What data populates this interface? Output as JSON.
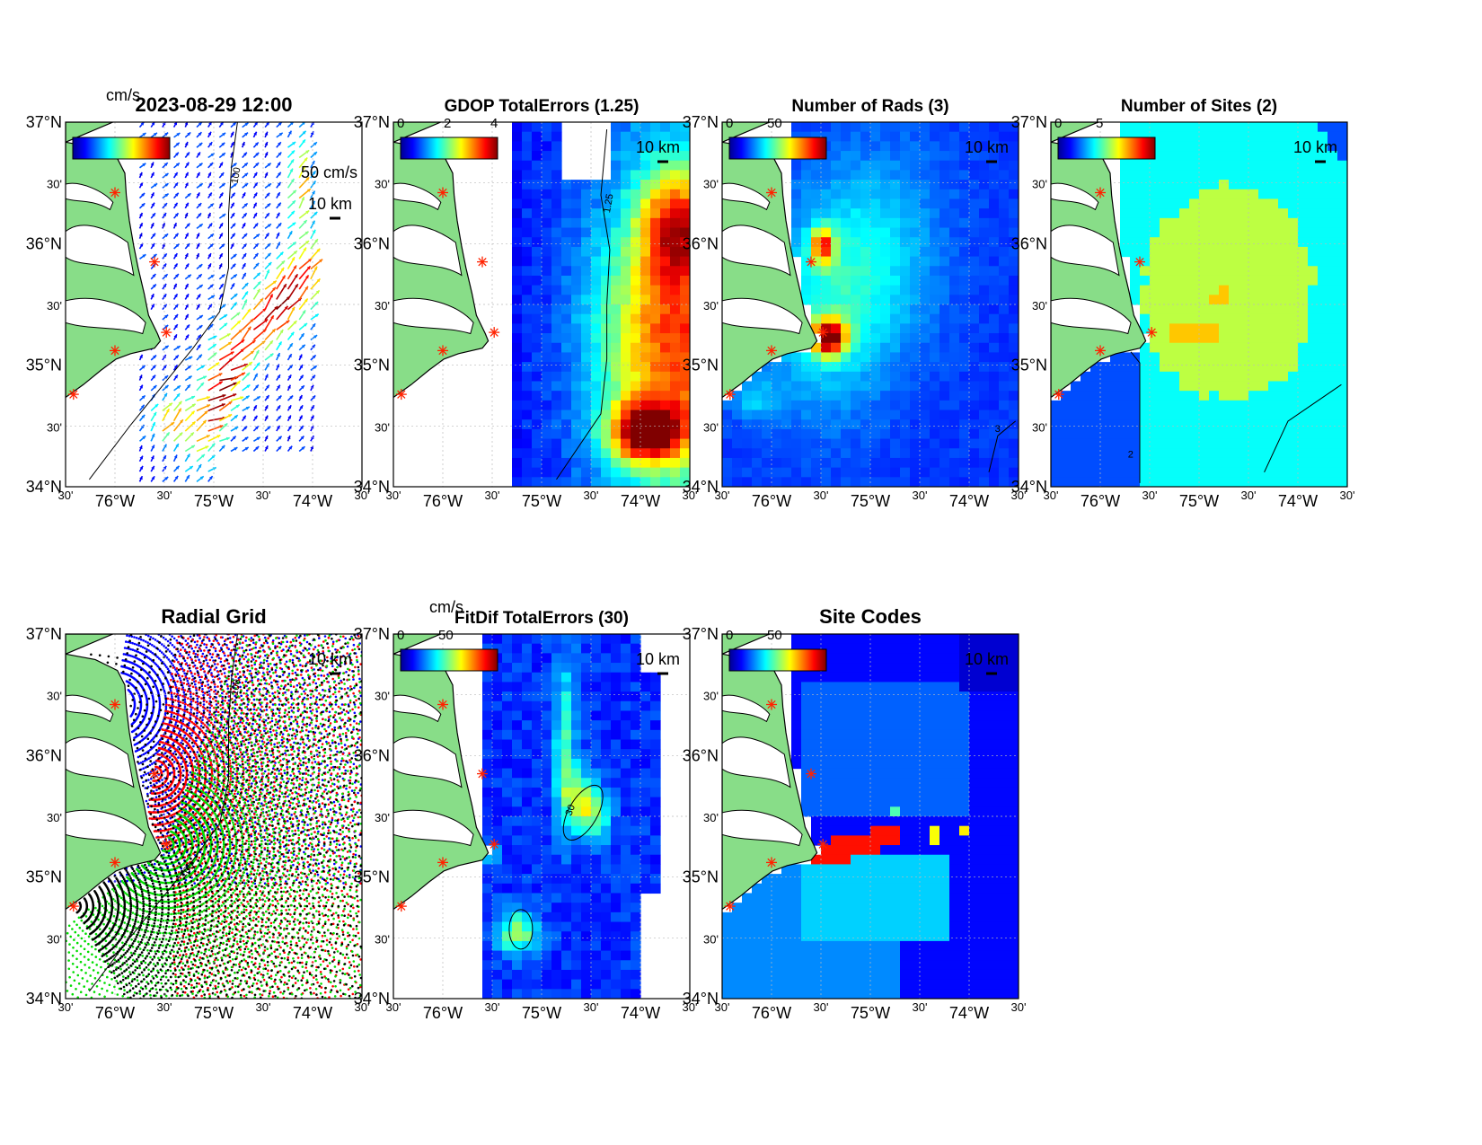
{
  "map_extent": {
    "lon_range": [
      -76.5,
      -73.5
    ],
    "lat_range": [
      34.0,
      37.0
    ]
  },
  "axis_labels": {
    "lat": [
      "37°N",
      "30'",
      "36°N",
      "30'",
      "35°N",
      "30'",
      "34°N"
    ],
    "lon": [
      "30'",
      "76°W",
      "30'",
      "75°W",
      "30'",
      "74°W",
      "30'"
    ]
  },
  "colors": {
    "land": "#88dd88",
    "coast": "#000000",
    "site_marker": "#ff2200",
    "grid": "#bbbbbb"
  },
  "sites": [
    {
      "lon": -76.0,
      "lat": 36.42
    },
    {
      "lon": -75.6,
      "lat": 35.85
    },
    {
      "lon": -75.48,
      "lat": 35.27
    },
    {
      "lon": -76.0,
      "lat": 35.12
    },
    {
      "lon": -76.42,
      "lat": 34.76
    }
  ],
  "panels": [
    {
      "id": "total-currents",
      "title": "2023-08-29 12:00",
      "units_label": "cm/s",
      "scale_label": "50 cm/s",
      "distance_label": "10 km",
      "contour_label": "100",
      "colorbar": {
        "visible": true,
        "ticks": []
      },
      "field": "currents"
    },
    {
      "id": "gdop",
      "title": "GDOP TotalErrors (1.25)",
      "distance_label": "10 km",
      "contour_label": "1.25",
      "colorbar": {
        "visible": true,
        "ticks": [
          "0",
          "2",
          "4"
        ]
      },
      "field": "gdop"
    },
    {
      "id": "num-rads",
      "title": "Number of Rads (3)",
      "distance_label": "10 km",
      "contour_label": "3",
      "colorbar": {
        "visible": true,
        "ticks": [
          "0",
          "50"
        ]
      },
      "field": "rads"
    },
    {
      "id": "num-sites",
      "title": "Number of Sites (2)",
      "distance_label": "10 km",
      "contour_label": "2",
      "colorbar": {
        "visible": true,
        "ticks": [
          "0",
          "5"
        ]
      },
      "field": "sites"
    },
    {
      "id": "radial-grid",
      "title": "Radial Grid",
      "distance_label": "10 km",
      "contour_label": "100",
      "colorbar": {
        "visible": false,
        "ticks": []
      },
      "field": "radial"
    },
    {
      "id": "fitdif",
      "title": "FitDif TotalErrors (30)",
      "units_label": "cm/s",
      "distance_label": "10 km",
      "contour_label": "30",
      "colorbar": {
        "visible": true,
        "ticks": [
          "0",
          "50"
        ]
      },
      "field": "fitdif"
    },
    {
      "id": "site-codes",
      "title": "Site Codes",
      "distance_label": "10 km",
      "colorbar": {
        "visible": true,
        "ticks": [
          "0",
          "50"
        ]
      },
      "field": "codes"
    }
  ],
  "radial_sites": [
    {
      "lon": -76.0,
      "lat": 36.42,
      "color": "#0000ff"
    },
    {
      "lon": -75.6,
      "lat": 35.85,
      "color": "#ff0000"
    },
    {
      "lon": -75.48,
      "lat": 35.27,
      "color": "#00dd00"
    },
    {
      "lon": -76.42,
      "lat": 34.76,
      "color": "#000000"
    }
  ]
}
